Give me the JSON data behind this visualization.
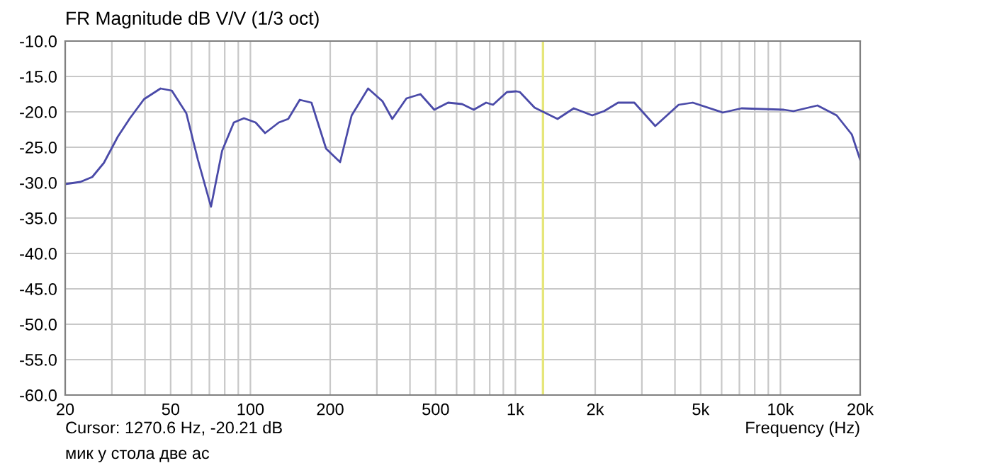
{
  "chart_data": {
    "type": "line",
    "title": "FR Magnitude dB V/V (1/3 oct)",
    "xlabel": "Frequency (Hz)",
    "annotations": [
      "Cursor: 1270.6 Hz, -20.21 dB",
      "мик у стола две ас"
    ],
    "log": "x",
    "grid": true,
    "marker": "none",
    "line_style": "solid",
    "xlim": [
      20,
      20000
    ],
    "xticks": [
      20,
      {
        "value": 30,
        "label": null
      },
      {
        "value": 40,
        "label": null
      },
      50,
      {
        "value": 60,
        "label": null
      },
      {
        "value": 70,
        "label": null
      },
      {
        "value": 80,
        "label": null
      },
      {
        "value": 90,
        "label": null
      },
      100,
      200,
      {
        "value": 300,
        "label": null
      },
      {
        "value": 400,
        "label": null
      },
      500,
      {
        "value": 600,
        "label": null
      },
      {
        "value": 700,
        "label": null
      },
      {
        "value": 800,
        "label": null
      },
      {
        "value": 900,
        "label": null
      },
      {
        "value": 1000,
        "label": "1k"
      },
      {
        "value": 2000,
        "label": "2k"
      },
      {
        "value": 3000,
        "label": null
      },
      {
        "value": 4000,
        "label": null
      },
      {
        "value": 5000,
        "label": "5k"
      },
      {
        "value": 6000,
        "label": null
      },
      {
        "value": 7000,
        "label": null
      },
      {
        "value": 8000,
        "label": null
      },
      {
        "value": 9000,
        "label": null
      },
      {
        "value": 10000,
        "label": "10k"
      },
      {
        "value": 20000,
        "label": "20k"
      }
    ],
    "ylim": [
      -60,
      -10
    ],
    "yticks": [
      {
        "value": -60,
        "label": "-60.0"
      },
      {
        "value": -55,
        "label": "-55.0"
      },
      {
        "value": -50,
        "label": "-50.0"
      },
      {
        "value": -45,
        "label": "-45.0"
      },
      {
        "value": -40,
        "label": "-40.0"
      },
      {
        "value": -35,
        "label": "-35.0"
      },
      {
        "value": -30,
        "label": "-30.0"
      },
      {
        "value": -25,
        "label": "-25.0"
      },
      {
        "value": -20,
        "label": "-20.0"
      },
      {
        "value": -15,
        "label": "-15.0"
      },
      {
        "value": -10,
        "label": "-10.0"
      }
    ],
    "ref_lines": [
      {
        "axis": "x",
        "value": 1270.6,
        "color": "#e6e67a"
      }
    ],
    "series": [
      {
        "color": "#4a4aa8",
        "x": [
          20,
          22.8,
          25.3,
          28,
          31.6,
          35.1,
          39.7,
          45.8,
          50.5,
          57.3,
          63.4,
          71,
          78.2,
          86.6,
          94.5,
          104.6,
          113.6,
          128,
          138.9,
          153.5,
          170,
          193,
          218,
          241,
          278,
          315,
          343,
          388,
          438,
          494,
          557,
          629,
          696,
          775,
          823,
          929,
          1007,
          1039,
          1181,
          1442,
          1660,
          1949,
          2160,
          2440,
          2810,
          3370,
          4130,
          4670,
          6060,
          7130,
          10300,
          11200,
          13800,
          16300,
          18600,
          20000
        ],
        "values": [
          -30.2,
          -29.9,
          -29.2,
          -27.2,
          -23.5,
          -20.9,
          -18.2,
          -16.7,
          -17.0,
          -20.2,
          -26.8,
          -33.4,
          -25.5,
          -21.5,
          -20.9,
          -21.5,
          -23.0,
          -21.5,
          -21.0,
          -18.3,
          -18.7,
          -25.2,
          -27.1,
          -20.5,
          -16.7,
          -18.5,
          -21.0,
          -18.1,
          -17.5,
          -19.7,
          -18.7,
          -18.9,
          -19.7,
          -18.7,
          -19.0,
          -17.2,
          -17.1,
          -17.2,
          -19.4,
          -21.0,
          -19.5,
          -20.5,
          -19.9,
          -18.7,
          -18.7,
          -22.0,
          -19.0,
          -18.7,
          -20.1,
          -19.5,
          -19.7,
          -19.9,
          -19.1,
          -20.5,
          -23.2,
          -26.8
        ]
      }
    ]
  }
}
